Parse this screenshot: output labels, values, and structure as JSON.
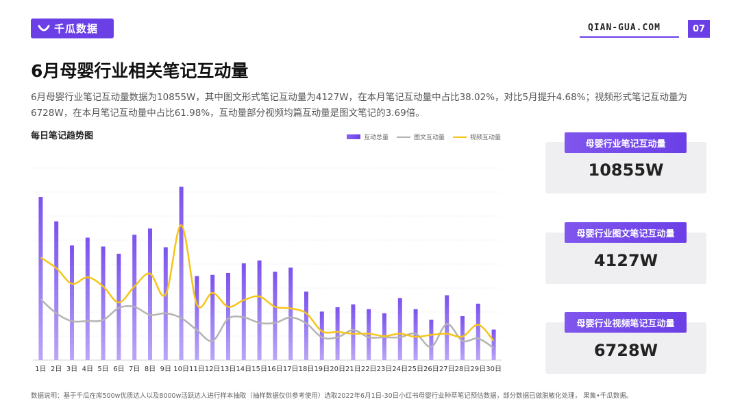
{
  "header": {
    "logo_text": "千瓜数据",
    "site": "QIAN-GUA.COM",
    "page_number": "07",
    "accent_color": "#6b3fe6"
  },
  "title": "6月母婴行业相关笔记互动量",
  "description": "6月母婴行业笔记互动量数据为10855W，其中图文形式笔记互动量为4127W，在本月笔记互动量中占比38.02%，对比5月提升4.68%；视频形式笔记互动量为6728W，在本月笔记互动量中占比61.98%，互动量部分视频均篇互动量是图文笔记的3.69倍。",
  "chart_title": "每日笔记趋势图",
  "legend": {
    "total": "互动总量",
    "image": "图文互动量",
    "video": "视频互动量"
  },
  "chart_data": {
    "type": "bar",
    "categories": [
      "1日",
      "2日",
      "3日",
      "4日",
      "5日",
      "6日",
      "7日",
      "8日",
      "9日",
      "10日",
      "11日",
      "12日",
      "13日",
      "14日",
      "15日",
      "16日",
      "17日",
      "18日",
      "19日",
      "20日",
      "21日",
      "22日",
      "23日",
      "24日",
      "25日",
      "26日",
      "27日",
      "28日",
      "29日",
      "30日"
    ],
    "series": [
      {
        "name": "互动总量",
        "type": "bar",
        "color": "#7b52ee",
        "values": [
          680,
          578,
          478,
          510,
          473,
          443,
          522,
          548,
          470,
          722,
          350,
          355,
          363,
          403,
          415,
          368,
          385,
          285,
          202,
          220,
          232,
          212,
          195,
          258,
          212,
          168,
          270,
          183,
          235,
          127
        ]
      },
      {
        "name": "图文互动量",
        "type": "line",
        "color": "#b3b3b3",
        "values": [
          253,
          195,
          162,
          163,
          167,
          217,
          222,
          188,
          195,
          175,
          125,
          80,
          172,
          178,
          155,
          155,
          178,
          153,
          95,
          95,
          125,
          95,
          95,
          95,
          110,
          55,
          150,
          80,
          90,
          50
        ]
      },
      {
        "name": "视频互动量",
        "type": "line",
        "color": "#f5c518",
        "values": [
          427,
          383,
          318,
          345,
          307,
          240,
          307,
          360,
          273,
          562,
          232,
          280,
          222,
          250,
          265,
          222,
          215,
          195,
          120,
          117,
          110,
          110,
          100,
          110,
          97,
          105,
          110,
          98,
          147,
          80
        ]
      }
    ],
    "ylim": [
      0,
      800
    ],
    "grid": true,
    "legend_position": "top-right"
  },
  "cards": [
    {
      "label": "母婴行业笔记互动量",
      "value": "10855W"
    },
    {
      "label": "母婴行业图文笔记互动量",
      "value": "4127W"
    },
    {
      "label": "母婴行业视频笔记互动量",
      "value": "6728W"
    }
  ],
  "footnote": "数据说明：基于千瓜在库500w优质达人以及8000w活跃达人进行样本抽取（抽样数据仅供参考使用）选取2022年6月1日-30日小红书母婴行业种草笔记预估数据，部分数据已做脱敏化处理， 果集•千瓜数据。"
}
